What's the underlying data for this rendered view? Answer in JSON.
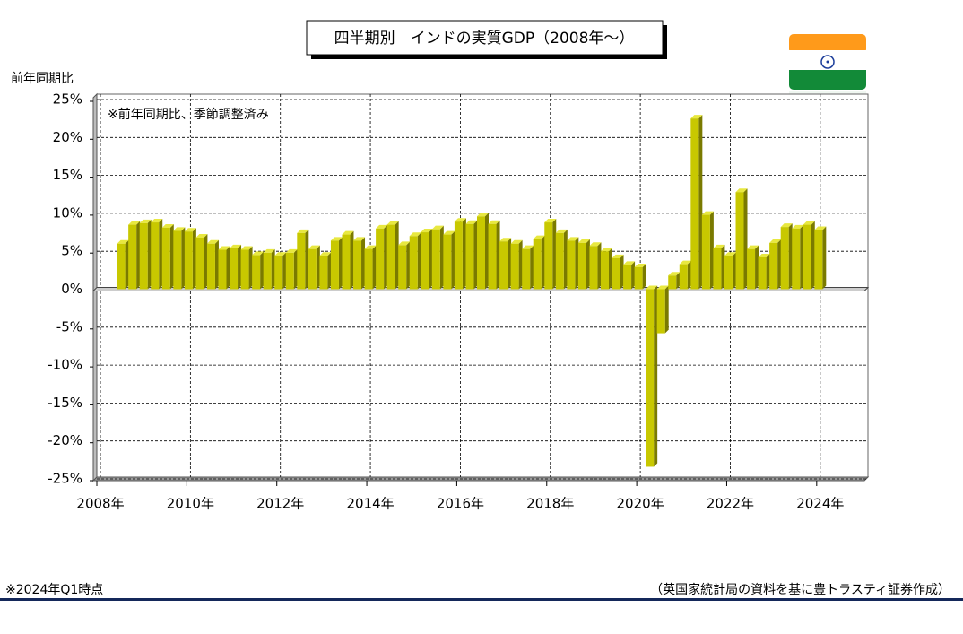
{
  "chart_data": {
    "type": "bar3d",
    "title": "四半期別　インドの実質GDP（2008年～）",
    "y_label": "前年同期比",
    "annotation": "※前年同期比、季節調整済み",
    "footnote": "※2024年Q1時点",
    "source": "（英国家統計局の資料を基に豊トラスティ証券作成）",
    "color": "#c8c800",
    "negative_tick_color": "#e00000",
    "grid": true,
    "x": [
      2008.5,
      2008.75,
      2009,
      2009.25,
      2009.5,
      2009.75,
      2010,
      2010.25,
      2010.5,
      2010.75,
      2011,
      2011.25,
      2011.5,
      2011.75,
      2012,
      2012.25,
      2012.5,
      2012.75,
      2013,
      2013.25,
      2013.5,
      2013.75,
      2014,
      2014.25,
      2014.5,
      2014.75,
      2015,
      2015.25,
      2015.5,
      2015.75,
      2016,
      2016.25,
      2016.5,
      2016.75,
      2017,
      2017.25,
      2017.5,
      2017.75,
      2018,
      2018.25,
      2018.5,
      2018.75,
      2019,
      2019.25,
      2019.5,
      2019.75,
      2020,
      2020.25,
      2020.5,
      2020.75,
      2021,
      2021.25,
      2021.5,
      2021.75,
      2022,
      2022.25,
      2022.5,
      2022.75,
      2023,
      2023.25,
      2023.5,
      2023.75,
      2024
    ],
    "values": [
      6.0,
      8.5,
      8.7,
      8.8,
      8.1,
      7.7,
      7.6,
      6.8,
      6.0,
      5.2,
      5.4,
      5.2,
      4.5,
      4.8,
      4.4,
      4.8,
      7.4,
      5.3,
      4.4,
      6.4,
      7.2,
      6.4,
      5.3,
      8.0,
      8.5,
      5.8,
      7.0,
      7.5,
      7.9,
      7.2,
      8.9,
      8.6,
      9.6,
      8.6,
      6.3,
      6.0,
      5.3,
      6.6,
      8.8,
      7.4,
      6.4,
      6.1,
      5.7,
      5.0,
      4.1,
      3.2,
      2.9,
      -23.4,
      -5.8,
      1.8,
      3.3,
      22.5,
      9.8,
      5.4,
      4.4,
      12.8,
      5.3,
      4.2,
      6.1,
      8.2,
      8.0,
      8.5,
      7.8
    ],
    "xlim": [
      2007.92,
      2025.06
    ],
    "xticks": [
      {
        "value": 2008,
        "label": "2008年"
      },
      {
        "value": 2010,
        "label": "2010年"
      },
      {
        "value": 2012,
        "label": "2012年"
      },
      {
        "value": 2014,
        "label": "2014年"
      },
      {
        "value": 2016,
        "label": "2016年"
      },
      {
        "value": 2018,
        "label": "2018年"
      },
      {
        "value": 2020,
        "label": "2020年"
      },
      {
        "value": 2022,
        "label": "2022年"
      },
      {
        "value": 2024,
        "label": "2024年"
      }
    ],
    "ylim": [
      -25,
      25
    ],
    "yticks": [
      {
        "value": 25,
        "label": "25%"
      },
      {
        "value": 20,
        "label": "20%"
      },
      {
        "value": 15,
        "label": "15%"
      },
      {
        "value": 10,
        "label": "10%"
      },
      {
        "value": 5,
        "label": "5%"
      },
      {
        "value": 0,
        "label": "0%"
      },
      {
        "value": -5,
        "label": "-5%"
      },
      {
        "value": -10,
        "label": "-10%"
      },
      {
        "value": -15,
        "label": "-15%"
      },
      {
        "value": -20,
        "label": "-20%"
      },
      {
        "value": -25,
        "label": "-25%"
      }
    ]
  }
}
